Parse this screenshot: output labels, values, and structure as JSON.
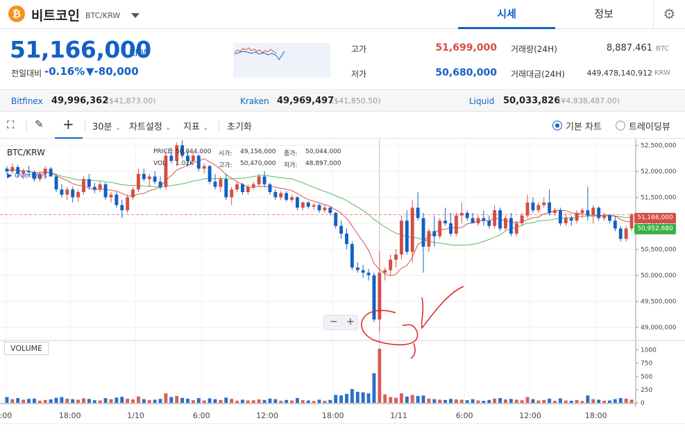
{
  "header": {
    "coin_logo": "₿",
    "coin_name": "비트코인",
    "coin_pair": "BTC/KRW",
    "tabs": [
      {
        "label": "시세"
      },
      {
        "label": "정보"
      }
    ],
    "settings_icon": "gear-icon"
  },
  "summary": {
    "price": "51,166,000",
    "unit": "KRW",
    "change_label": "전일대비",
    "change_pct": "-0.16%",
    "change_abs": "▼-80,000",
    "high_label": "고가",
    "high": "51,699,000",
    "low_label": "저가",
    "low": "50,680,000",
    "volume_label": "거래량(24H)",
    "volume": "8,887.461",
    "volume_unit": "BTC",
    "amount_label": "거래대금(24H)",
    "amount": "449,478,140,912",
    "amount_unit": "KRW",
    "colors": {
      "up": "#d24f45",
      "down": "#1261c4"
    }
  },
  "exchanges": [
    {
      "name": "Bitfinex",
      "price": "49,996,362",
      "usd": "($41,873.00)"
    },
    {
      "name": "Kraken",
      "price": "49,969,497",
      "usd": "($41,850.50)"
    },
    {
      "name": "Liquid",
      "price": "50,033,826",
      "usd": "(¥4,838,487.00)"
    }
  ],
  "toolbar": {
    "interval": "30분",
    "chart_settings": "차트설정",
    "indicators": "지표",
    "reset": "초기화",
    "basic_chart": "기본 차트",
    "tradingview": "트레이딩뷰"
  },
  "chart": {
    "title": "BTC/KRW",
    "ohlc": {
      "price_label": "PRICE:",
      "price": "50,044,000",
      "vol_label": "VOL:",
      "vol": "1.02K",
      "open_label": "시가:",
      "open": "49,156,000",
      "close_label": "종가:",
      "close": "50,044,000",
      "high_label": "고가:",
      "high": "50,470,000",
      "low_label": "저가:",
      "low": "48,897,000"
    },
    "overlays_label": "▶ OverLays",
    "volume_label": "VOLUME",
    "zoom_minus": "−",
    "zoom_plus": "+",
    "current_price_tag": "51,166,000",
    "ma_price_tag": "50,952,680"
  },
  "chart_data": {
    "type": "candlestick",
    "price_axis": {
      "ticks": [
        "52,500,000",
        "52,000,000",
        "51,500,000",
        "51,000,000",
        "50,500,000",
        "50,000,000",
        "49,500,000",
        "49,000,000"
      ],
      "range": [
        48800000,
        52560000
      ]
    },
    "volume_axis": {
      "ticks": [
        "1000",
        "750",
        "500",
        "250",
        "0"
      ],
      "range": [
        0,
        1100
      ]
    },
    "time_labels": [
      ":00",
      "18:00",
      "1/10",
      "6:00",
      "12:00",
      "18:00",
      "1/11",
      "6:00",
      "12:00",
      "18:00"
    ],
    "candles": [
      [
        52050000,
        52100000,
        51950000,
        52000000,
        110
      ],
      [
        52000000,
        52150000,
        51950000,
        52080000,
        70
      ],
      [
        52080000,
        52120000,
        51900000,
        51950000,
        90
      ],
      [
        51950000,
        52050000,
        51850000,
        52000000,
        60
      ],
      [
        52000000,
        52100000,
        51900000,
        51980000,
        75
      ],
      [
        51980000,
        52020000,
        51800000,
        51850000,
        80
      ],
      [
        51850000,
        52000000,
        51800000,
        51950000,
        40
      ],
      [
        51950000,
        52100000,
        51850000,
        52050000,
        55
      ],
      [
        52050000,
        52080000,
        51900000,
        51900000,
        65
      ],
      [
        51900000,
        51950000,
        51600000,
        51650000,
        95
      ],
      [
        51650000,
        51750000,
        51500000,
        51550000,
        110
      ],
      [
        51550000,
        51700000,
        51450000,
        51650000,
        80
      ],
      [
        51650000,
        51700000,
        51400000,
        51500000,
        70
      ],
      [
        51500000,
        51650000,
        51420000,
        51600000,
        60
      ],
      [
        51600000,
        51900000,
        51550000,
        51850000,
        85
      ],
      [
        51850000,
        51950000,
        51650000,
        51700000,
        75
      ],
      [
        51700000,
        51780000,
        51580000,
        51650000,
        50
      ],
      [
        51650000,
        51800000,
        51600000,
        51750000,
        45
      ],
      [
        51750000,
        51780000,
        51450000,
        51500000,
        90
      ],
      [
        51500000,
        51600000,
        51400000,
        51550000,
        70
      ],
      [
        51550000,
        51600000,
        51300000,
        51350000,
        100
      ],
      [
        51350000,
        51450000,
        51100000,
        51250000,
        115
      ],
      [
        51250000,
        51550000,
        51200000,
        51500000,
        80
      ],
      [
        51500000,
        51700000,
        51450000,
        51650000,
        65
      ],
      [
        51650000,
        52050000,
        51600000,
        51950000,
        120
      ],
      [
        51950000,
        52050000,
        51800000,
        51850000,
        70
      ],
      [
        51850000,
        51950000,
        51700000,
        51900000,
        55
      ],
      [
        51900000,
        52000000,
        51750000,
        51800000,
        60
      ],
      [
        51800000,
        51900000,
        51650000,
        51700000,
        75
      ],
      [
        51700000,
        52400000,
        51650000,
        52300000,
        180
      ],
      [
        52300000,
        52450000,
        52150000,
        52200000,
        110
      ],
      [
        52200000,
        52550000,
        52100000,
        52500000,
        130
      ],
      [
        52500000,
        52600000,
        52250000,
        52300000,
        95
      ],
      [
        52300000,
        52400000,
        52100000,
        52200000,
        80
      ],
      [
        52200000,
        52350000,
        52150000,
        52300000,
        50
      ],
      [
        52300000,
        52320000,
        52000000,
        52050000,
        90
      ],
      [
        52050000,
        52150000,
        51950000,
        52100000,
        45
      ],
      [
        52100000,
        52120000,
        51750000,
        51800000,
        85
      ],
      [
        51800000,
        51950000,
        51650000,
        51700000,
        70
      ],
      [
        51700000,
        51900000,
        51600000,
        51850000,
        55
      ],
      [
        51850000,
        51950000,
        51450000,
        51500000,
        100
      ],
      [
        51500000,
        51700000,
        51350000,
        51650000,
        75
      ],
      [
        51650000,
        51800000,
        51600000,
        51750000,
        40
      ],
      [
        51750000,
        51780000,
        51550000,
        51600000,
        60
      ],
      [
        51600000,
        51750000,
        51550000,
        51700000,
        45
      ],
      [
        51700000,
        51800000,
        51650000,
        51750000,
        50
      ],
      [
        51750000,
        51950000,
        51700000,
        51900000,
        65
      ],
      [
        51900000,
        52000000,
        51700000,
        51750000,
        55
      ],
      [
        51750000,
        51780000,
        51550000,
        51600000,
        80
      ],
      [
        51600000,
        51650000,
        51450000,
        51500000,
        70
      ],
      [
        51500000,
        51620000,
        51450000,
        51580000,
        40
      ],
      [
        51580000,
        51620000,
        51420000,
        51450000,
        55
      ],
      [
        51450000,
        51550000,
        51400000,
        51500000,
        45
      ],
      [
        51500000,
        51520000,
        51250000,
        51300000,
        90
      ],
      [
        51300000,
        51420000,
        51250000,
        51400000,
        50
      ],
      [
        51400000,
        51420000,
        51280000,
        51320000,
        45
      ],
      [
        51320000,
        51380000,
        51250000,
        51350000,
        35
      ],
      [
        51350000,
        51380000,
        51200000,
        51250000,
        60
      ],
      [
        51250000,
        51350000,
        51200000,
        51300000,
        40
      ],
      [
        51300000,
        51320000,
        51150000,
        51200000,
        55
      ],
      [
        51200000,
        51220000,
        50900000,
        50950000,
        150
      ],
      [
        50950000,
        51050000,
        50700000,
        50800000,
        140
      ],
      [
        50800000,
        50900000,
        50500000,
        50600000,
        170
      ],
      [
        50600000,
        50650000,
        50100000,
        50150000,
        260
      ],
      [
        50150000,
        50250000,
        50050000,
        50100000,
        210
      ],
      [
        50100000,
        50200000,
        49950000,
        50050000,
        200
      ],
      [
        50050000,
        50120000,
        49900000,
        50000000,
        180
      ],
      [
        50000000,
        50050000,
        49100000,
        49150000,
        560
      ],
      [
        49150000,
        50470000,
        48900000,
        50050000,
        1020
      ],
      [
        50050000,
        50150000,
        49900000,
        50100000,
        160
      ],
      [
        50100000,
        50400000,
        50000000,
        50300000,
        110
      ],
      [
        50300000,
        50500000,
        50150000,
        50400000,
        95
      ],
      [
        50400000,
        51150000,
        50300000,
        51050000,
        180
      ],
      [
        51050000,
        51250000,
        50400000,
        50450000,
        120
      ],
      [
        50450000,
        51450000,
        50250000,
        51300000,
        150
      ],
      [
        51300000,
        51600000,
        51050000,
        51100000,
        130
      ],
      [
        51100000,
        51200000,
        50050000,
        50550000,
        140
      ],
      [
        50550000,
        50900000,
        50450000,
        50850000,
        80
      ],
      [
        50850000,
        51150000,
        50550000,
        50750000,
        70
      ],
      [
        50750000,
        51100000,
        50700000,
        51050000,
        60
      ],
      [
        51050000,
        51300000,
        50950000,
        51000000,
        55
      ],
      [
        51000000,
        51200000,
        50750000,
        50800000,
        75
      ],
      [
        50800000,
        51200000,
        50750000,
        51150000,
        65
      ],
      [
        51150000,
        51400000,
        51000000,
        51200000,
        60
      ],
      [
        51200000,
        51250000,
        51050000,
        51100000,
        50
      ],
      [
        51100000,
        51200000,
        51000000,
        51000000,
        70
      ],
      [
        51000000,
        51150000,
        50950000,
        51100000,
        45
      ],
      [
        51100000,
        51250000,
        50950000,
        51050000,
        40
      ],
      [
        51050000,
        51150000,
        50900000,
        50950000,
        55
      ],
      [
        50950000,
        51350000,
        50900000,
        51250000,
        80
      ],
      [
        51250000,
        51300000,
        50850000,
        50900000,
        90
      ],
      [
        50900000,
        51150000,
        50850000,
        51100000,
        65
      ],
      [
        51100000,
        51200000,
        50750000,
        50800000,
        75
      ],
      [
        50800000,
        51050000,
        50750000,
        51000000,
        60
      ],
      [
        51000000,
        51200000,
        50950000,
        51150000,
        50
      ],
      [
        51150000,
        51550000,
        51100000,
        51400000,
        110
      ],
      [
        51400000,
        51500000,
        51200000,
        51250000,
        70
      ],
      [
        51250000,
        51400000,
        51200000,
        51350000,
        45
      ],
      [
        51350000,
        51500000,
        51300000,
        51400000,
        55
      ],
      [
        51400000,
        51650000,
        51150000,
        51200000,
        80
      ],
      [
        51200000,
        51300000,
        51150000,
        51250000,
        40
      ],
      [
        51250000,
        51300000,
        50950000,
        51000000,
        85
      ],
      [
        51000000,
        51200000,
        50950000,
        51100000,
        45
      ],
      [
        51100000,
        51150000,
        50950000,
        51050000,
        40
      ],
      [
        51050000,
        51250000,
        51000000,
        51200000,
        55
      ],
      [
        51200000,
        51300000,
        51100000,
        51250000,
        35
      ],
      [
        51250000,
        51700000,
        51050000,
        51150000,
        140
      ],
      [
        51150000,
        51350000,
        51000000,
        51300000,
        70
      ],
      [
        51300000,
        51320000,
        51050000,
        51100000,
        60
      ],
      [
        51100000,
        51200000,
        51050000,
        51150000,
        40
      ],
      [
        51150000,
        51180000,
        51000000,
        51050000,
        45
      ],
      [
        51050000,
        51150000,
        50850000,
        50900000,
        70
      ],
      [
        50900000,
        50950000,
        50650000,
        50700000,
        90
      ],
      [
        50700000,
        50950000,
        50650000,
        50900000,
        80
      ],
      [
        50900000,
        51200000,
        50850000,
        51166000,
        60
      ]
    ]
  }
}
